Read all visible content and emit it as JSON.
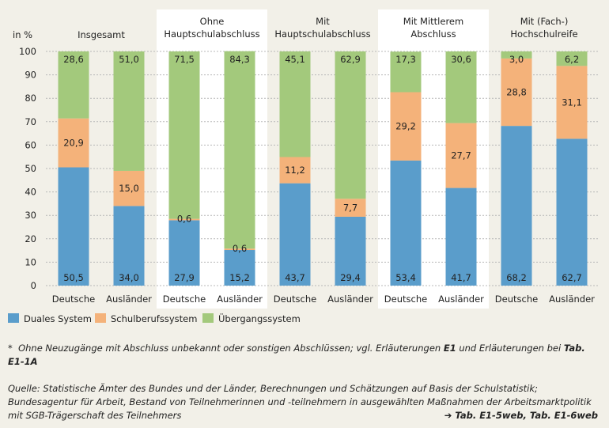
{
  "chart_data": {
    "type": "bar",
    "stacked": true,
    "ylabel": "in %",
    "ylim": [
      0,
      100
    ],
    "yticks": [
      0,
      10,
      20,
      30,
      40,
      50,
      60,
      70,
      80,
      90,
      100
    ],
    "grid": true,
    "groups": [
      {
        "label": "Insgesamt",
        "highlight": false
      },
      {
        "label": "Ohne\nHauptschulabschluss",
        "highlight": true
      },
      {
        "label": "Mit\nHauptschulabschluss",
        "highlight": false
      },
      {
        "label": "Mit Mittlerem\nAbschluss",
        "highlight": true
      },
      {
        "label": "Mit (Fach-)\nHochschulreife",
        "highlight": false
      }
    ],
    "categories": [
      "Deutsche",
      "Ausländer",
      "Deutsche",
      "Ausländer",
      "Deutsche",
      "Ausländer",
      "Deutsche",
      "Ausländer",
      "Deutsche",
      "Ausländer"
    ],
    "series": [
      {
        "name": "Duales System",
        "color": "#5a9dcb",
        "values": [
          50.5,
          34.0,
          27.9,
          15.2,
          43.7,
          29.4,
          53.4,
          41.7,
          68.2,
          62.7
        ],
        "labels": [
          "50,5",
          "34,0",
          "27,9",
          "15,2",
          "43,7",
          "29,4",
          "53,4",
          "41,7",
          "68,2",
          "62,7"
        ]
      },
      {
        "name": "Schulberufssystem",
        "color": "#f4b27a",
        "values": [
          20.9,
          15.0,
          0.6,
          0.6,
          11.2,
          7.7,
          29.2,
          27.7,
          28.8,
          31.1
        ],
        "labels": [
          "20,9",
          "15,0",
          "0,6",
          "0,6",
          "11,2",
          "7,7",
          "29,2",
          "27,7",
          "28,8",
          "31,1"
        ]
      },
      {
        "name": "Übergangssystem",
        "color": "#a3c97c",
        "values": [
          28.6,
          51.0,
          71.5,
          84.3,
          45.1,
          62.9,
          17.3,
          30.6,
          3.0,
          6.2
        ],
        "labels": [
          "28,6",
          "51,0",
          "71,5",
          "84,3",
          "45,1",
          "62,9",
          "17,3",
          "30,6",
          "3,0",
          "6,2"
        ]
      }
    ]
  },
  "footnote": {
    "star": "*",
    "text_a": "Ohne Neuzugänge mit Abschluss unbekannt oder sonstigen Abschlüssen; vgl. Erläuterungen ",
    "bold_a": "E1",
    "text_b": " und Erläuterungen bei ",
    "bold_b": "Tab. E1-1A"
  },
  "source": {
    "text": "Quelle: Statistische Ämter des Bundes und der Länder, Berechnungen und Schätzungen auf Basis der Schulstatistik; Bundesagentur für Arbeit, Bestand von Teilnehmerinnen und -teilnehmern in ausgewählten Maßnahmen der Arbeitsmarktpolitik mit SGB-Trägerschaft des Teilnehmers",
    "ref": "➔ Tab. E1-5web, Tab. E1-6web"
  }
}
